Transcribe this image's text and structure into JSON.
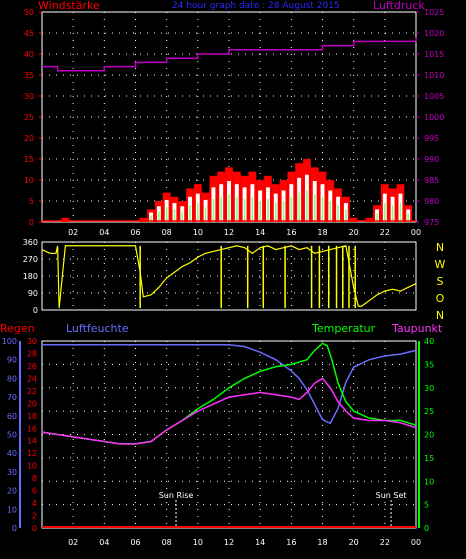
{
  "header": {
    "left_title": "Windstärke",
    "center_title": "24 hour graph date : 28 August 2015",
    "right_title": "Luftdruck"
  },
  "colors": {
    "wind": "#ff0000",
    "gust": "#ffffff",
    "avg_wind": "#80ff80",
    "pressure": "#c000c0",
    "direction": "#ffff00",
    "rain": "#ff0000",
    "humidity": "#6b6bff",
    "temperature": "#00ff00",
    "dewpoint": "#ff30ff",
    "axis": "#ffffff",
    "grid": "#ffffff",
    "title_blue": "#2a2aff"
  },
  "chart_data": [
    {
      "type": "bar",
      "id": "wind",
      "title": "Windstärke",
      "x_ticks": [
        "02",
        "04",
        "06",
        "08",
        "10",
        "12",
        "14",
        "16",
        "18",
        "20",
        "22",
        "00"
      ],
      "x_hours": [
        0,
        24
      ],
      "left_ticks": [
        "0",
        "5",
        "10",
        "15",
        "20",
        "25",
        "30",
        "35",
        "40",
        "45",
        "50"
      ],
      "ylim_left": [
        0,
        50
      ],
      "right_ticks": [
        "975",
        "980",
        "985",
        "990",
        "995",
        "1000",
        "1005",
        "1010",
        "1015",
        "1020",
        "1025"
      ],
      "ylim_right": [
        975,
        1025
      ],
      "grid": true,
      "series": [
        {
          "name": "Windstärke",
          "hours": [
            1.5,
            6.5,
            7,
            7.5,
            8,
            8.5,
            9,
            9.5,
            10,
            10.5,
            11,
            11.5,
            12,
            12.5,
            13,
            13.5,
            14,
            14.5,
            15,
            15.5,
            16,
            16.5,
            17,
            17.5,
            18,
            18.5,
            19,
            19.5,
            20,
            20.5,
            21,
            21.5,
            22,
            22.5,
            23,
            23.5
          ],
          "values": [
            1,
            1,
            3,
            5,
            7,
            6,
            5,
            8,
            9,
            7,
            11,
            12,
            13,
            12,
            11,
            12,
            10,
            11,
            9,
            10,
            12,
            14,
            15,
            13,
            12,
            10,
            8,
            6,
            1,
            0,
            1,
            4,
            9,
            8,
            9,
            4
          ]
        },
        {
          "name": "Luftdruck",
          "hours": [
            0,
            1,
            2,
            3,
            4,
            5,
            6,
            7,
            8,
            9,
            10,
            11,
            12,
            13,
            14,
            15,
            16,
            17,
            18,
            19,
            20,
            21,
            22,
            23,
            24
          ],
          "values": [
            1012,
            1011,
            1011,
            1011,
            1012,
            1012,
            1013,
            1013,
            1014,
            1014,
            1015,
            1015,
            1016,
            1016,
            1016,
            1016,
            1016,
            1016,
            1017,
            1017,
            1018,
            1018,
            1018,
            1018,
            1019
          ]
        }
      ]
    },
    {
      "type": "line",
      "id": "direction",
      "left_ticks": [
        "0",
        "90",
        "180",
        "270",
        "360"
      ],
      "ylim": [
        0,
        360
      ],
      "compass_labels": [
        "N",
        "W",
        "S",
        "O",
        "N"
      ],
      "grid": true,
      "series": [
        {
          "name": "Wind direction",
          "hours": [
            0,
            0.5,
            0.9,
            1,
            1.1,
            1.5,
            2,
            3,
            4,
            5,
            6,
            6.3,
            6.5,
            7,
            7.5,
            8,
            8.5,
            9,
            9.5,
            10,
            10.5,
            11,
            11.5,
            12,
            12.5,
            13,
            13.5,
            14,
            14.5,
            15,
            15.5,
            16,
            16.5,
            17,
            17.5,
            18,
            18.5,
            19,
            19.5,
            20,
            20.3,
            20.5,
            21,
            21.5,
            22,
            22.5,
            23,
            23.5,
            24
          ],
          "values": [
            320,
            300,
            300,
            340,
            10,
            340,
            340,
            340,
            340,
            340,
            340,
            200,
            70,
            80,
            120,
            170,
            200,
            230,
            250,
            280,
            300,
            310,
            320,
            330,
            340,
            330,
            300,
            330,
            340,
            320,
            330,
            340,
            320,
            330,
            300,
            310,
            320,
            330,
            340,
            120,
            20,
            20,
            50,
            80,
            100,
            110,
            100,
            120,
            140
          ]
        }
      ]
    },
    {
      "type": "line",
      "id": "weather",
      "x_ticks": [
        "02",
        "04",
        "06",
        "08",
        "10",
        "12",
        "14",
        "16",
        "18",
        "20",
        "22",
        "00"
      ],
      "labels": {
        "rain": "Regen",
        "humidity": "Luftfeuchte",
        "temperature": "Temperatur",
        "dewpoint": "Taupunkt"
      },
      "left_rain_ticks": [
        "0",
        "2",
        "4",
        "6",
        "8",
        "10",
        "12",
        "14",
        "16",
        "18",
        "20",
        "22",
        "24",
        "26",
        "28",
        "30"
      ],
      "left_humidity_ticks": [
        "0",
        "10",
        "20",
        "30",
        "40",
        "50",
        "60",
        "70",
        "80",
        "90",
        "100"
      ],
      "right_ticks": [
        "0",
        "5",
        "10",
        "15",
        "20",
        "25",
        "30",
        "35",
        "40"
      ],
      "ylim_rain": [
        0,
        30
      ],
      "ylim_humidity": [
        0,
        100
      ],
      "ylim_temp": [
        0,
        40
      ],
      "grid": true,
      "annotations": [
        {
          "label": "Sun Rise",
          "hour": 8.6
        },
        {
          "label": "Sun Set",
          "hour": 22.4
        }
      ],
      "series": [
        {
          "name": "Regen",
          "hours": [
            0,
            24
          ],
          "values": [
            0,
            0
          ]
        },
        {
          "name": "Luftfeuchte",
          "hours": [
            0,
            2,
            4,
            6,
            8,
            10,
            11,
            12,
            13,
            14,
            15,
            16,
            16.5,
            17,
            17.5,
            18,
            18.5,
            19,
            19.5,
            20,
            21,
            22,
            23,
            24
          ],
          "values": [
            98,
            98,
            98,
            98,
            98,
            98,
            98,
            98,
            97,
            94,
            90,
            84,
            80,
            74,
            66,
            58,
            56,
            64,
            78,
            86,
            90,
            92,
            93,
            95
          ]
        },
        {
          "name": "Temperatur",
          "hours": [
            0,
            2,
            4,
            5,
            6,
            7,
            8,
            9,
            10,
            11,
            12,
            13,
            14,
            15,
            16,
            16.5,
            17,
            17.5,
            18,
            18.3,
            18.6,
            19,
            19.5,
            20,
            21,
            22,
            23,
            24
          ],
          "values": [
            20.5,
            19.5,
            18.5,
            18,
            18,
            18.5,
            21,
            23,
            25.5,
            27.5,
            30,
            32,
            33.5,
            34.5,
            35,
            35.5,
            36,
            38,
            39.5,
            39,
            36,
            31,
            27,
            25,
            23.5,
            23,
            23,
            22
          ]
        },
        {
          "name": "Taupunkt",
          "hours": [
            0,
            2,
            4,
            5,
            6,
            7,
            8,
            9,
            10,
            11,
            12,
            13,
            14,
            15,
            16,
            16.5,
            17,
            17.5,
            18,
            18.5,
            19,
            19.5,
            20,
            21,
            22,
            23,
            24
          ],
          "values": [
            20.5,
            19.5,
            18.5,
            18,
            18,
            18.5,
            21,
            23,
            25,
            26.5,
            28,
            28.5,
            29,
            28.5,
            28,
            27.5,
            29,
            31,
            32,
            30,
            27,
            25,
            23.5,
            23,
            23,
            22.5,
            21.5
          ]
        }
      ]
    }
  ]
}
